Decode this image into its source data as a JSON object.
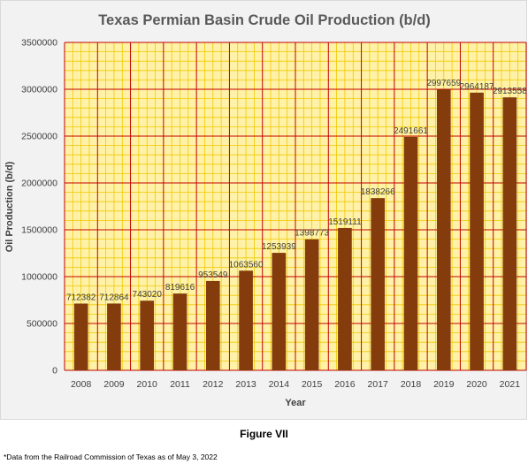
{
  "chart_data": {
    "type": "bar",
    "title": "Texas Permian Basin Crude Oil Production (b/d)",
    "xlabel": "Year",
    "ylabel": "Oil Production (b/d)",
    "categories": [
      "2008",
      "2009",
      "2010",
      "2011",
      "2012",
      "2013",
      "2014",
      "2015",
      "2016",
      "2017",
      "2018",
      "2019",
      "2020",
      "2021"
    ],
    "values": [
      712382,
      712864,
      743020,
      819616,
      953549,
      1063560,
      1253939,
      1398773,
      1519111,
      1838266,
      2491661,
      2997659,
      2964187,
      2913558
    ],
    "data_labels": [
      "712382",
      "712864",
      "743020",
      "819616",
      "953549",
      "1063560",
      "1253939",
      "1398773",
      "1519111",
      "1838266",
      "2491661",
      "2997659",
      "2964187",
      "2913558"
    ],
    "ylim": [
      0,
      3500000
    ],
    "y_ticks": [
      "0",
      "500000",
      "1000000",
      "1500000",
      "2000000",
      "2500000",
      "3000000",
      "3500000"
    ],
    "grid": true,
    "legend": "none",
    "colors": {
      "bar": "#843c0c",
      "plot_background": "#fff2a8",
      "grid_major": "#c00000",
      "grid_minor": "#f0c800",
      "title": "#595959",
      "text": "#404040"
    }
  },
  "caption": "Figure VII",
  "source_note": "*Data from the Railroad Commission of Texas as of May 3, 2022"
}
